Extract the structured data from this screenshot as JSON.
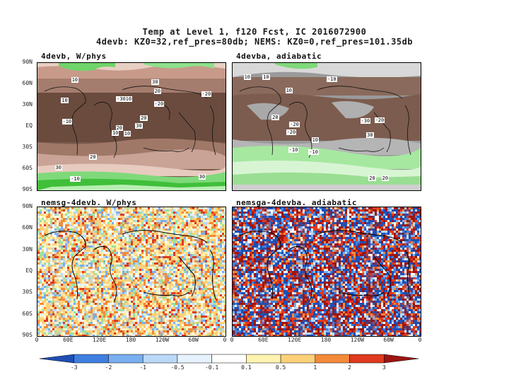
{
  "figure": {
    "title_line1": "Temp at Level 1, f120 Fcst, IC 2016072900",
    "title_line2": "4devb: KZ0=32,ref_pres=80db; NEMS: KZ0=0,ref_pres=101.35db"
  },
  "panels": {
    "top_left": "4devb, W/phys",
    "top_right": "4devba, adiabatic",
    "bottom_left": "nemsg-4devb. W/phys",
    "bottom_right": "nemsga-4devba. adiabatic"
  },
  "lat_labels_top": [
    "90N",
    "60N",
    "30N",
    "EQ",
    "30S",
    "60S",
    "90S"
  ],
  "lat_labels_bottom": [
    "90N",
    "60N",
    "30N",
    "EQ",
    "30S",
    "60S",
    "90S"
  ],
  "lon_labels": [
    "0",
    "60E",
    "120E",
    "180",
    "120W",
    "60W",
    "0"
  ],
  "colorbar": {
    "labels": [
      "-3",
      "-2",
      "-1",
      "-0.5",
      "-0.1",
      "0.1",
      "0.5",
      "1",
      "2",
      "3"
    ],
    "colors": [
      "#1f4fb4",
      "#3f7fe0",
      "#79aef0",
      "#b9d9f6",
      "#e6f3ff",
      "#ffffff",
      "#fff3b0",
      "#fdd07a",
      "#f38a3a",
      "#df3a1e",
      "#9e1410"
    ]
  },
  "contour_labels_tl": [
    "10",
    "10",
    "20",
    "30",
    "20",
    "20",
    "30",
    "10",
    "20",
    "30",
    "10",
    "30",
    "-10",
    "-20",
    "10",
    "-20",
    "-10",
    "-30"
  ],
  "contour_labels_tr": [
    "10",
    "20",
    "10",
    "30",
    "20",
    "10",
    "-10",
    "-20",
    "-10",
    "-30",
    "-20",
    "-10",
    "10",
    "20",
    "-20"
  ]
}
